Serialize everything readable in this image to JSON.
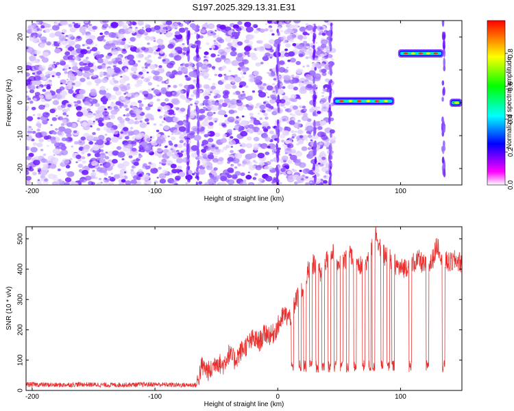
{
  "title": "S197.2025.329.13.31.E31",
  "chart_data": [
    {
      "type": "heatmap",
      "xlabel": "Height of straight line (km)",
      "ylabel": "Frequency (Hz)",
      "xlim": [
        -205,
        150
      ],
      "ylim": [
        -25,
        25
      ],
      "xticks": [
        -200,
        -100,
        0,
        100
      ],
      "yticks": [
        -20,
        -10,
        0,
        10,
        20
      ],
      "colorbar": {
        "label": "Normalized spectral amplitude",
        "range": [
          0,
          1
        ],
        "ticks": [
          "0.0",
          "0.2",
          "0.4",
          "0.6",
          "0.8"
        ],
        "colormap": [
          "#ffffff",
          "#ff00ff",
          "#0000ff",
          "#00ffff",
          "#00ff00",
          "#ffff00",
          "#ff0000"
        ]
      },
      "noise_region_x": [
        -205,
        45
      ],
      "lines": [
        {
          "x_start": 45,
          "x_end": 95,
          "frequency": 0.5,
          "amplitude": 0.9
        },
        {
          "x_start": 98,
          "x_end": 135,
          "frequency": 15,
          "amplitude": 0.95
        },
        {
          "x_start": 140,
          "x_end": 150,
          "frequency": 0,
          "amplitude": 0.6
        }
      ],
      "vertical_features_x": [
        -73,
        -65,
        0,
        30,
        43,
        135
      ]
    },
    {
      "type": "line",
      "xlabel": "Height of straight line (km)",
      "ylabel": "SNR (10 * v/v)",
      "xlim": [
        -205,
        150
      ],
      "ylim": [
        0,
        540
      ],
      "xticks": [
        -200,
        -100,
        0,
        100
      ],
      "yticks": [
        0,
        100,
        200,
        300,
        400,
        500
      ],
      "color": "#e8312f",
      "series": [
        {
          "x": [
            -205,
            -180,
            -160,
            -140,
            -120,
            -100,
            -80,
            -66,
            -62,
            -55,
            -50,
            -45,
            -40,
            -35,
            -30,
            -25,
            -20,
            -15,
            -10,
            -5,
            0,
            5,
            10,
            15,
            20,
            25,
            30,
            35,
            40,
            45,
            50,
            55,
            60,
            65,
            70,
            75,
            80,
            85,
            90,
            95,
            100,
            105,
            110,
            115,
            120,
            125,
            130,
            135,
            140,
            145,
            150
          ],
          "y": [
            20,
            18,
            20,
            18,
            19,
            20,
            18,
            18,
            80,
            60,
            100,
            80,
            120,
            100,
            130,
            150,
            170,
            160,
            190,
            180,
            210,
            250,
            240,
            300,
            330,
            400,
            420,
            380,
            440,
            450,
            420,
            430,
            450,
            400,
            420,
            440,
            520,
            450,
            440,
            420,
            400,
            410,
            420,
            430,
            410,
            420,
            480,
            430,
            420,
            430,
            420
          ],
          "dips": [
            12,
            18,
            22,
            27,
            32,
            37,
            42,
            47,
            52,
            57,
            63,
            70,
            75,
            78,
            85,
            90,
            94,
            108,
            122,
            135
          ]
        }
      ]
    }
  ]
}
